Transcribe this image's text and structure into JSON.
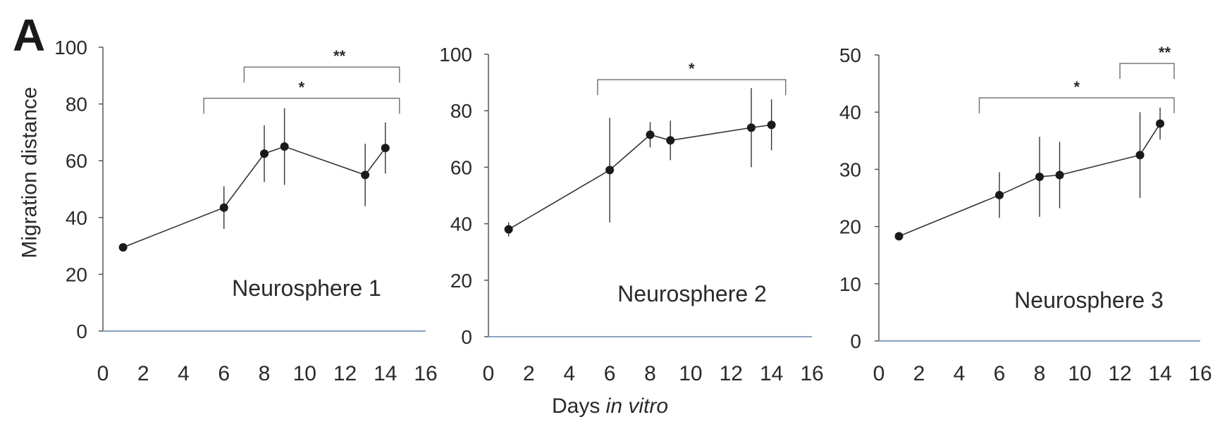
{
  "figure": {
    "panel_letter": "A",
    "ylabel": "Migration distance",
    "xlabel_plain": "Days ",
    "xlabel_italic": "in vitro"
  },
  "chart_data": [
    {
      "type": "line",
      "title": "Neurosphere 1",
      "xlim": [
        0,
        16
      ],
      "ylim": [
        0,
        100
      ],
      "xticks": [
        0,
        2,
        4,
        6,
        8,
        10,
        12,
        14,
        16
      ],
      "yticks": [
        0,
        20,
        40,
        60,
        80,
        100
      ],
      "grid": false,
      "series": [
        {
          "x": [
            1,
            6,
            8,
            9,
            13,
            14
          ],
          "y": [
            29.5,
            43.5,
            62.5,
            65,
            55,
            64.5
          ],
          "error": [
            0.5,
            7.5,
            10,
            13.5,
            11,
            9
          ]
        }
      ],
      "significance": [
        {
          "x1": 7,
          "x2": 14.7,
          "y": 93,
          "label": "**"
        },
        {
          "x1": 5,
          "x2": 14.7,
          "y": 82,
          "label": "*"
        }
      ]
    },
    {
      "type": "line",
      "title": "Neurosphere 2",
      "xlim": [
        0,
        16
      ],
      "ylim": [
        0,
        100
      ],
      "xticks": [
        0,
        2,
        4,
        6,
        8,
        10,
        12,
        14,
        16
      ],
      "yticks": [
        0,
        20,
        40,
        60,
        80,
        100
      ],
      "grid": false,
      "series": [
        {
          "x": [
            1,
            6,
            8,
            9,
            13,
            14
          ],
          "y": [
            38,
            59,
            71.5,
            69.5,
            74,
            75
          ],
          "error": [
            2.5,
            18.5,
            4.5,
            7,
            14,
            9
          ]
        }
      ],
      "significance": [
        {
          "x1": 5.4,
          "x2": 14.7,
          "y": 91,
          "label": "*"
        }
      ]
    },
    {
      "type": "line",
      "title": "Neurosphere 3",
      "xlim": [
        0,
        16
      ],
      "ylim": [
        0,
        50
      ],
      "xticks": [
        0,
        2,
        4,
        6,
        8,
        10,
        12,
        14,
        16
      ],
      "yticks": [
        0,
        10,
        20,
        30,
        40,
        50
      ],
      "grid": false,
      "series": [
        {
          "x": [
            1,
            6,
            8,
            9,
            13,
            14
          ],
          "y": [
            18.3,
            25.5,
            28.7,
            29,
            32.5,
            38
          ],
          "error": [
            0.3,
            4,
            7,
            5.8,
            7.5,
            2.8
          ]
        }
      ],
      "significance": [
        {
          "x1": 12,
          "x2": 14.7,
          "y": 48.5,
          "label": "**"
        },
        {
          "x1": 5,
          "x2": 14.7,
          "y": 42.5,
          "label": "*"
        }
      ]
    }
  ]
}
